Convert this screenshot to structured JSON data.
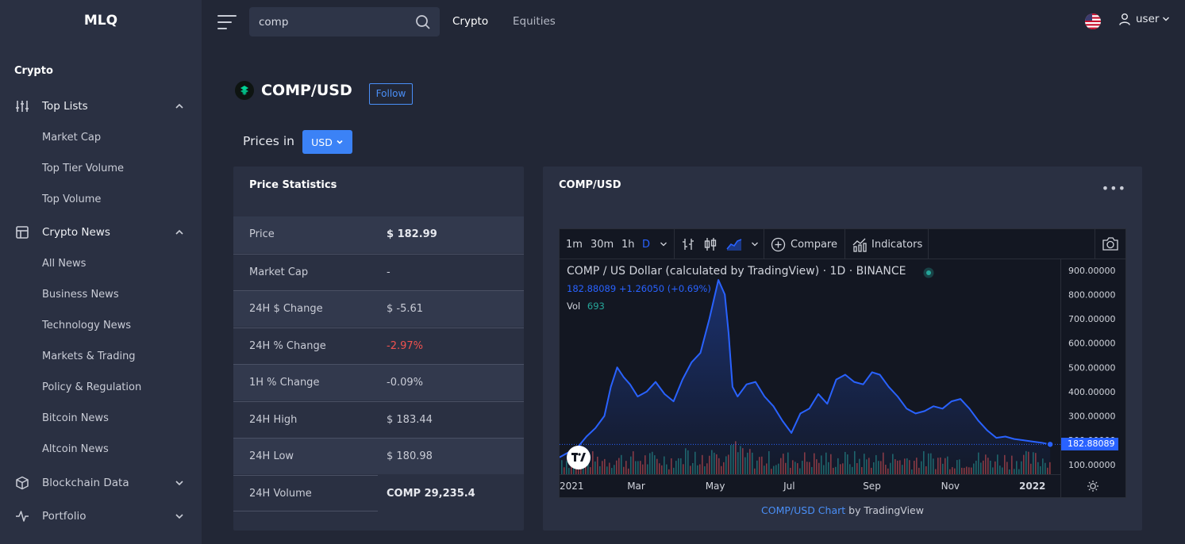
{
  "app": {
    "brand": "MLQ"
  },
  "sidebar": {
    "section": "Crypto",
    "top_lists": {
      "label": "Top Lists",
      "items": [
        "Market Cap",
        "Top Tier Volume",
        "Top Volume"
      ]
    },
    "crypto_news": {
      "label": "Crypto News",
      "items": [
        "All News",
        "Business News",
        "Technology News",
        "Markets & Trading",
        "Policy & Regulation",
        "Bitcoin News",
        "Altcoin News"
      ]
    },
    "blockchain_data": {
      "label": "Blockchain Data"
    },
    "portfolio": {
      "label": "Portfolio"
    }
  },
  "topbar": {
    "search_value": "comp",
    "nav": [
      "Crypto",
      "Equities"
    ],
    "user": "user"
  },
  "coin": {
    "pair": "COMP/USD",
    "follow": "Follow",
    "prices_in_label": "Prices in",
    "currency": "USD"
  },
  "stats": {
    "title": "Price Statistics",
    "rows": [
      {
        "label": "Price",
        "value": "$ 182.99"
      },
      {
        "label": "Market Cap",
        "value": "-"
      },
      {
        "label": "24H $ Change",
        "value": "$ -5.61"
      },
      {
        "label": "24H % Change",
        "value": "-2.97%"
      },
      {
        "label": "1H % Change",
        "value": "-0.09%"
      },
      {
        "label": "24H High",
        "value": "$ 183.44"
      },
      {
        "label": "24H Low",
        "value": "$ 180.98"
      },
      {
        "label": "24H Volume",
        "value": "COMP 29,235.4"
      }
    ],
    "negative_color": "#f0524f"
  },
  "chart_card": {
    "title": "COMP/USD",
    "toolbar": {
      "intervals": [
        "1m",
        "30m",
        "1h",
        "D"
      ],
      "active_interval": "D",
      "compare": "Compare",
      "indicators": "Indicators"
    },
    "legend": {
      "symbol": "COMP / US Dollar (calculated by TradingView) · 1D · BINANCE",
      "quote": "182.88089  +1.26050 (+0.69%)",
      "vol_label": "Vol",
      "vol_value": "693"
    },
    "last_price_label": "182.88089",
    "attribution_link": "COMP/USD Chart",
    "attribution_suffix": " by TradingView",
    "line_color": "#2962ff",
    "up_color": "#26a69a",
    "down_color": "#ef5350"
  },
  "chart_data": {
    "type": "area",
    "title": "COMP / US Dollar (calculated by TradingView)",
    "xlabel": "",
    "ylabel": "",
    "ylim": [
      60,
      945
    ],
    "x_ticks": [
      "2021",
      "Mar",
      "May",
      "Jul",
      "Sep",
      "Nov",
      "2022"
    ],
    "y_ticks": [
      900,
      800,
      700,
      600,
      500,
      400,
      300,
      200,
      100
    ],
    "y_tick_labels": [
      "900.00000",
      "800.00000",
      "700.00000",
      "600.00000",
      "500.00000",
      "400.00000",
      "300.00000",
      "200.00000",
      "100.00000"
    ],
    "series": [
      {
        "x": [
          "2021-01-01",
          "2021-01-08",
          "2021-01-15",
          "2021-01-22",
          "2021-01-29",
          "2021-02-05",
          "2021-02-10",
          "2021-02-15",
          "2021-02-20",
          "2021-02-25",
          "2021-03-03",
          "2021-03-10",
          "2021-03-17",
          "2021-03-24",
          "2021-03-31",
          "2021-04-07",
          "2021-04-14",
          "2021-04-21",
          "2021-04-28",
          "2021-05-05",
          "2021-05-10",
          "2021-05-13",
          "2021-05-16",
          "2021-05-20",
          "2021-05-27",
          "2021-06-03",
          "2021-06-10",
          "2021-06-17",
          "2021-06-24",
          "2021-07-01",
          "2021-07-08",
          "2021-07-15",
          "2021-07-22",
          "2021-07-29",
          "2021-08-05",
          "2021-08-12",
          "2021-08-19",
          "2021-08-26",
          "2021-09-02",
          "2021-09-08",
          "2021-09-15",
          "2021-09-22",
          "2021-09-29",
          "2021-10-06",
          "2021-10-13",
          "2021-10-20",
          "2021-10-27",
          "2021-11-03",
          "2021-11-10",
          "2021-11-17",
          "2021-11-24",
          "2021-12-01",
          "2021-12-08",
          "2021-12-15",
          "2021-12-22",
          "2021-12-29",
          "2022-01-05",
          "2022-01-12",
          "2022-01-19"
        ],
        "values": [
          130,
          150,
          170,
          215,
          250,
          300,
          420,
          500,
          460,
          430,
          380,
          400,
          440,
          390,
          360,
          450,
          520,
          560,
          700,
          860,
          800,
          640,
          420,
          380,
          430,
          440,
          380,
          340,
          280,
          230,
          310,
          330,
          390,
          350,
          450,
          470,
          440,
          430,
          480,
          470,
          420,
          380,
          330,
          310,
          320,
          340,
          330,
          360,
          370,
          330,
          280,
          240,
          210,
          215,
          205,
          200,
          195,
          190,
          183
        ]
      }
    ]
  }
}
